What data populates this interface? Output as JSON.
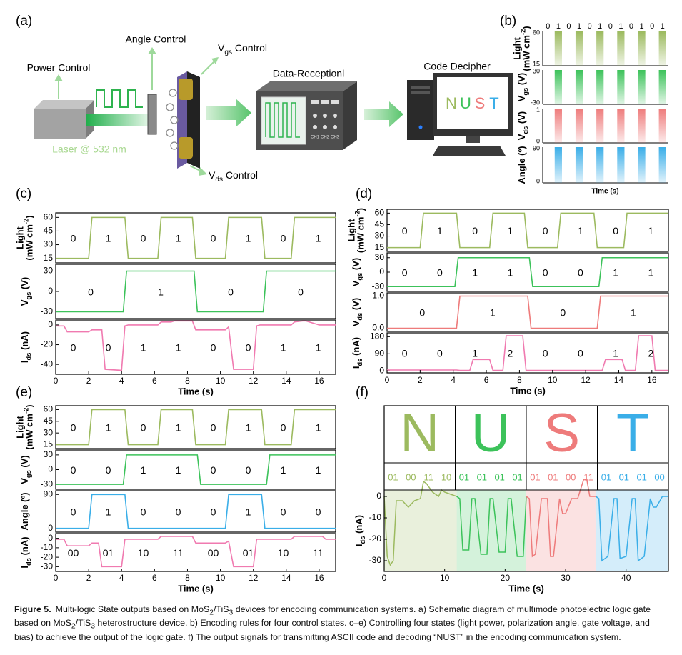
{
  "figure": {
    "a": {
      "label": "(a)",
      "power": "Power Control",
      "angle": "Angle Control",
      "vgs": [
        "V",
        {
          "sub": "gs"
        },
        " Control"
      ],
      "vds": [
        "V",
        {
          "sub": "ds"
        },
        " Control"
      ],
      "laser": "Laser @ 532 nm",
      "reception": "Data-Receptionl",
      "decipher": "Code Decipher",
      "channels": [
        "CH1",
        "CH2",
        "CH3"
      ],
      "screen": [
        {
          "text": "N",
          "color": "#9cba5f"
        },
        {
          "text": "U",
          "color": "#3cc25a"
        },
        {
          "text": "S",
          "color": "#ee7b7b"
        },
        {
          "text": "T",
          "color": "#3aaee8"
        }
      ]
    },
    "b": {
      "label": "(b)",
      "bits": [
        "0",
        "1",
        "0",
        "1",
        "0",
        "1",
        "0",
        "1",
        "0",
        "1",
        "0",
        "1"
      ],
      "rows": [
        {
          "ylabel": [
            [
              "Light"
            ],
            [
              "(mW cm",
              {
                "sup": "-2"
              },
              ")"
            ]
          ],
          "ticks": [
            60,
            15
          ],
          "color": "#9cba5f"
        },
        {
          "ylabel": [
            [
              "V",
              {
                "sub": "gs"
              },
              " (V)"
            ]
          ],
          "ticks": [
            30,
            -30
          ],
          "color": "#3cc25a"
        },
        {
          "ylabel": [
            [
              "V",
              {
                "sub": "ds"
              },
              " (V)"
            ]
          ],
          "ticks": [
            1,
            0
          ],
          "color": "#ee7b7b"
        },
        {
          "ylabel": [
            [
              "Angle (º)"
            ]
          ],
          "ticks": [
            90,
            0
          ],
          "color": "#3aaee8"
        }
      ],
      "xlabel": "Time (s)"
    },
    "c": {
      "label": "(c)",
      "xlabel": "Time (s)",
      "xlim": [
        0,
        17
      ],
      "xticks": [
        0,
        2,
        4,
        6,
        8,
        10,
        12,
        14,
        16
      ],
      "plots": [
        {
          "ylabel": [
            [
              "Light"
            ],
            [
              "(mW cm",
              {
                "sup": "-2"
              },
              ")"
            ]
          ],
          "ylim": [
            10,
            65
          ],
          "yticks": [
            15,
            30,
            45,
            60
          ],
          "color": "#9cba5f",
          "x": [
            0,
            2,
            2.2,
            4.2,
            4.4,
            6.2,
            6.4,
            8.3,
            8.5,
            10.3,
            10.5,
            12.5,
            12.7,
            14.3,
            14.5,
            17
          ],
          "values": [
            15,
            15,
            60,
            60,
            15,
            15,
            60,
            60,
            15,
            15,
            60,
            60,
            15,
            15,
            60,
            60
          ],
          "labels": [
            "0",
            "1",
            "0",
            "1",
            "0",
            "1",
            "0",
            "1"
          ]
        },
        {
          "ylabel": [
            [
              "V",
              {
                "sub": "gs"
              },
              " (V)"
            ]
          ],
          "ylim": [
            -40,
            40
          ],
          "yticks": [
            -30,
            0,
            30
          ],
          "color": "#3cc25a",
          "x": [
            0,
            4.1,
            4.3,
            8.4,
            8.6,
            12.6,
            12.8,
            17
          ],
          "values": [
            -30,
            -30,
            30,
            30,
            -30,
            -30,
            30,
            30
          ],
          "labels": [
            "0",
            "1",
            "0",
            "0"
          ]
        },
        {
          "ylabel": [
            [
              "I",
              {
                "sub": "ds"
              },
              " (nA)"
            ]
          ],
          "ylim": [
            -50,
            5
          ],
          "yticks": [
            -40,
            -20,
            0
          ],
          "color": "#f07ab0",
          "x": [
            0,
            0.5,
            0.7,
            2,
            2.2,
            2.8,
            3,
            4,
            4.2,
            4.4,
            6.2,
            6.4,
            7,
            7.2,
            8.3,
            8.5,
            10.3,
            10.5,
            10.8,
            11,
            12,
            12.2,
            12.4,
            14.3,
            14.5,
            15,
            15.2,
            16,
            16.2,
            17
          ],
          "values": [
            -1,
            -1,
            -7,
            -7,
            -5,
            -5,
            -45,
            -46,
            -1,
            0,
            0,
            3,
            3,
            4,
            4,
            -5,
            -5,
            -2,
            -45,
            -45,
            -45,
            -1,
            0,
            0,
            3,
            4,
            4,
            0,
            0,
            0
          ],
          "labels": [
            "0",
            "0",
            "1",
            "1",
            "0",
            "0",
            "1",
            "1"
          ]
        }
      ]
    },
    "d": {
      "label": "(d)",
      "xlabel": "Time (s)",
      "xlim": [
        0,
        17
      ],
      "xticks": [
        0,
        2,
        4,
        6,
        8,
        10,
        12,
        14,
        16
      ],
      "plots": [
        {
          "ylabel": [
            [
              "Light"
            ],
            [
              "(mW cm",
              {
                "sup": "-2"
              },
              ")"
            ]
          ],
          "ylim": [
            10,
            65
          ],
          "yticks": [
            15,
            30,
            45,
            60
          ],
          "color": "#9cba5f",
          "x": [
            0,
            2,
            2.2,
            4.2,
            4.4,
            6.2,
            6.4,
            8.3,
            8.5,
            10.3,
            10.5,
            12.5,
            12.7,
            14.3,
            14.5,
            17
          ],
          "values": [
            15,
            15,
            60,
            60,
            15,
            15,
            60,
            60,
            15,
            15,
            60,
            60,
            15,
            15,
            60,
            60
          ],
          "labels": [
            "0",
            "1",
            "0",
            "1",
            "0",
            "1",
            "0",
            "1"
          ]
        },
        {
          "ylabel": [
            [
              "V",
              {
                "sub": "gs"
              },
              " (V)"
            ]
          ],
          "ylim": [
            -40,
            40
          ],
          "yticks": [
            -30,
            0,
            30
          ],
          "color": "#3cc25a",
          "x": [
            0,
            4.1,
            4.3,
            8.6,
            8.8,
            12.8,
            13,
            17
          ],
          "values": [
            -30,
            -30,
            30,
            30,
            -30,
            -30,
            30,
            30
          ],
          "labels": [
            "0",
            "0",
            "1",
            "1",
            "0",
            "0",
            "1",
            "1"
          ]
        },
        {
          "ylabel": [
            [
              "V",
              {
                "sub": "ds"
              },
              " (V)"
            ]
          ],
          "ylim": [
            -0.1,
            1.1
          ],
          "yticks": [
            {
              "value": 0,
              "label": "0.0"
            },
            {
              "value": 1,
              "label": "1.0"
            }
          ],
          "color": "#ee7b7b",
          "x": [
            0,
            4.2,
            4.4,
            8.5,
            8.7,
            12.7,
            12.9,
            17
          ],
          "values": [
            0,
            0,
            1,
            1,
            0,
            0,
            1,
            1
          ],
          "labels": [
            "0",
            "1",
            "0",
            "1"
          ]
        },
        {
          "ylabel": [
            [
              "I",
              {
                "sub": "ds"
              },
              " (nA)"
            ]
          ],
          "ylim": [
            -10,
            200
          ],
          "yticks": [
            0,
            90,
            180
          ],
          "color": "#f07ab0",
          "x": [
            0,
            4.2,
            4.4,
            5,
            5.2,
            6.2,
            6.4,
            7,
            7.2,
            8.2,
            8.4,
            13,
            13.2,
            14.2,
            14.4,
            15,
            15.2,
            16,
            16.2,
            17
          ],
          "values": [
            5,
            5,
            3,
            3,
            60,
            60,
            3,
            3,
            185,
            185,
            3,
            3,
            60,
            60,
            3,
            3,
            185,
            185,
            3,
            3
          ],
          "labels": [
            "0",
            "0",
            "1",
            "2",
            "0",
            "0",
            "1",
            "2"
          ]
        }
      ]
    },
    "e": {
      "label": "(e)",
      "xlabel": "Time (s)",
      "xlim": [
        0,
        17
      ],
      "xticks": [
        0,
        2,
        4,
        6,
        8,
        10,
        12,
        14,
        16
      ],
      "plots": [
        {
          "ylabel": [
            [
              "Light"
            ],
            [
              "(mW cm",
              {
                "sup": "-2"
              },
              ")"
            ]
          ],
          "ylim": [
            10,
            65
          ],
          "yticks": [
            15,
            30,
            45,
            60
          ],
          "color": "#9cba5f",
          "x": [
            0,
            2,
            2.2,
            4.2,
            4.4,
            6.2,
            6.4,
            8.3,
            8.5,
            10.3,
            10.5,
            12.5,
            12.7,
            14.3,
            14.5,
            17
          ],
          "values": [
            15,
            15,
            60,
            60,
            15,
            15,
            60,
            60,
            15,
            15,
            60,
            60,
            15,
            15,
            60,
            60
          ],
          "labels": [
            "0",
            "1",
            "0",
            "1",
            "0",
            "1",
            "0",
            "1"
          ]
        },
        {
          "ylabel": [
            [
              "V",
              {
                "sub": "gs"
              },
              " (V)"
            ]
          ],
          "ylim": [
            -40,
            40
          ],
          "yticks": [
            -30,
            0,
            30
          ],
          "color": "#3cc25a",
          "x": [
            0,
            4.1,
            4.3,
            8.6,
            8.8,
            12.8,
            13,
            17
          ],
          "values": [
            -30,
            -30,
            30,
            30,
            -30,
            -30,
            30,
            30
          ],
          "labels": [
            "0",
            "0",
            "1",
            "1",
            "0",
            "0",
            "1",
            "1"
          ]
        },
        {
          "ylabel": [
            [
              "Angle (º)"
            ]
          ],
          "ylim": [
            -10,
            100
          ],
          "yticks": [
            0,
            90
          ],
          "color": "#3aaee8",
          "x": [
            0,
            2,
            2.2,
            4.2,
            4.4,
            10.3,
            10.5,
            12.5,
            12.7,
            17
          ],
          "values": [
            0,
            0,
            90,
            90,
            0,
            0,
            90,
            90,
            0,
            0
          ],
          "labels": [
            "0",
            "1",
            "0",
            "0",
            "0",
            "1",
            "0",
            "0"
          ]
        },
        {
          "ylabel": [
            [
              "I",
              {
                "sub": "ds"
              },
              " (nA)"
            ]
          ],
          "ylim": [
            -35,
            5
          ],
          "yticks": [
            0,
            -10,
            -20,
            -30
          ],
          "color": "#f07ab0",
          "x": [
            0,
            0.5,
            0.7,
            2,
            2.2,
            2.6,
            2.8,
            4,
            4.2,
            6.2,
            6.4,
            8.3,
            8.5,
            10.3,
            10.5,
            10.8,
            11,
            12,
            12.2,
            14.3,
            14.5,
            16.2,
            16.4,
            17
          ],
          "values": [
            -1,
            -1,
            -8,
            -8,
            -5,
            -5,
            -30,
            -30,
            -1,
            -1,
            2,
            2,
            -5,
            -5,
            -3,
            -30,
            -30,
            -30,
            -1,
            -1,
            2,
            2,
            -1,
            -1
          ],
          "labels": [
            "00",
            "01",
            "10",
            "11",
            "00",
            "01",
            "10",
            "11"
          ]
        }
      ]
    },
    "f": {
      "label": "(f)",
      "xlabel": "Time (s)",
      "xlim": [
        0,
        47
      ],
      "xticks": [
        0,
        10,
        20,
        30,
        40
      ],
      "ylim": [
        -35,
        3
      ],
      "yticks": [
        0,
        -10,
        -20,
        -30
      ],
      "ylabel": [
        [
          "I",
          {
            "sub": "ds"
          },
          " (nA)"
        ]
      ],
      "letters": [
        {
          "text": "N",
          "color": "#9cba5f",
          "codes": [
            "01",
            "00",
            "11",
            "10"
          ],
          "x": [
            0,
            0.5,
            1,
            1.5,
            2,
            3,
            4,
            5,
            6,
            6.5,
            7,
            8,
            9,
            9.5,
            10,
            11,
            12
          ],
          "values": [
            0,
            -28,
            -32,
            -30,
            -2,
            -2,
            -5,
            -2,
            -1,
            7,
            6,
            2,
            0,
            3,
            2,
            1,
            0
          ]
        },
        {
          "text": "U",
          "color": "#3cc25a",
          "codes": [
            "01",
            "01",
            "01",
            "01"
          ],
          "x": [
            12,
            12.5,
            13,
            14,
            14.5,
            15,
            16,
            17,
            17.5,
            18,
            19,
            20,
            20.5,
            21,
            22,
            23,
            23.5
          ],
          "values": [
            0,
            -1,
            -25,
            -25,
            -1,
            -1,
            -27,
            -27,
            -1,
            -1,
            -26,
            -26,
            -1,
            -1,
            -28,
            -28,
            0
          ]
        },
        {
          "text": "S",
          "color": "#ee7b7b",
          "codes": [
            "01",
            "01",
            "00",
            "11"
          ],
          "x": [
            23.5,
            24,
            24.5,
            25,
            26,
            27,
            27.5,
            28,
            29,
            29.5,
            30,
            31,
            32,
            33,
            33.5,
            34,
            35
          ],
          "values": [
            0,
            -1,
            -28,
            -27,
            -1,
            -1,
            -28,
            -28,
            -1,
            -8,
            -8,
            -1,
            -1,
            8,
            8,
            0,
            0
          ]
        },
        {
          "text": "T",
          "color": "#3aaee8",
          "codes": [
            "01",
            "01",
            "01",
            "00"
          ],
          "x": [
            35,
            35.5,
            36,
            37,
            38,
            38.5,
            39,
            40,
            41,
            41.5,
            42,
            43,
            44,
            44.5,
            45,
            46,
            47
          ],
          "values": [
            0,
            -1,
            -30,
            -28,
            -1,
            -1,
            -29,
            -28,
            -1,
            -1,
            -30,
            -28,
            -1,
            -5,
            -5,
            0,
            0
          ]
        }
      ]
    }
  },
  "caption": {
    "title": "Figure 5.",
    "text": [
      "Multi-logic State outputs based on MoS",
      {
        "sub": "2"
      },
      "/TiS",
      {
        "sub": "3"
      },
      " devices for encoding communication systems. a) Schematic diagram of multimode photoelectric logic gate based on MoS",
      {
        "sub": "2"
      },
      "/TiS",
      {
        "sub": "3"
      },
      " heterostructure device. b) Encoding rules for four control states. c–e) Controlling four states (light power, polarization angle, gate voltage, and bias) to achieve the output of the logic gate. f) The output signals for transmitting ASCII code and decoding “NUST” in the encoding communication system."
    ]
  }
}
